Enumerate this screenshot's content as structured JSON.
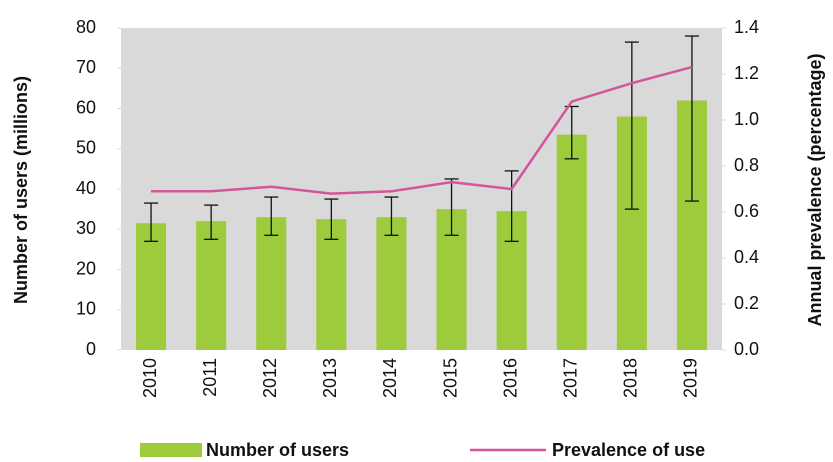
{
  "chart_data": {
    "type": "bar",
    "categories": [
      "2010",
      "2011",
      "2012",
      "2013",
      "2014",
      "2015",
      "2016",
      "2017",
      "2018",
      "2019"
    ],
    "ylabel": "Number of users (millions)",
    "y2label": "Annual prevalence (percentage)",
    "ylim": [
      0,
      80
    ],
    "yticks": [
      0,
      10,
      20,
      30,
      40,
      50,
      60,
      70,
      80
    ],
    "y2lim": [
      0,
      1.4
    ],
    "y2ticks": [
      {
        "value": 0,
        "label": "0.0"
      },
      0.2,
      0.4,
      0.6,
      0.8,
      {
        "value": 1,
        "label": "1.0"
      },
      1.2,
      1.4
    ],
    "background": "#d9d9d9",
    "legend": "bottom",
    "series": [
      {
        "name": "Number of users",
        "color": "#9dcb3c",
        "values": [
          31.5,
          32,
          33,
          32.5,
          33,
          35,
          34.5,
          53.5,
          58,
          62
        ],
        "lower": [
          27,
          27.5,
          28.5,
          27.5,
          28.5,
          28.5,
          27,
          47.5,
          35,
          37
        ],
        "upper": [
          36.5,
          36,
          38,
          37.5,
          38,
          42.5,
          44.5,
          60.5,
          76.5,
          78
        ]
      },
      {
        "name": "Prevalence of use",
        "color": "#d4559b",
        "axis": "y2",
        "type": "line",
        "values": [
          0.69,
          0.69,
          0.71,
          0.68,
          0.69,
          0.73,
          0.7,
          1.08,
          1.16,
          1.23
        ]
      }
    ]
  }
}
